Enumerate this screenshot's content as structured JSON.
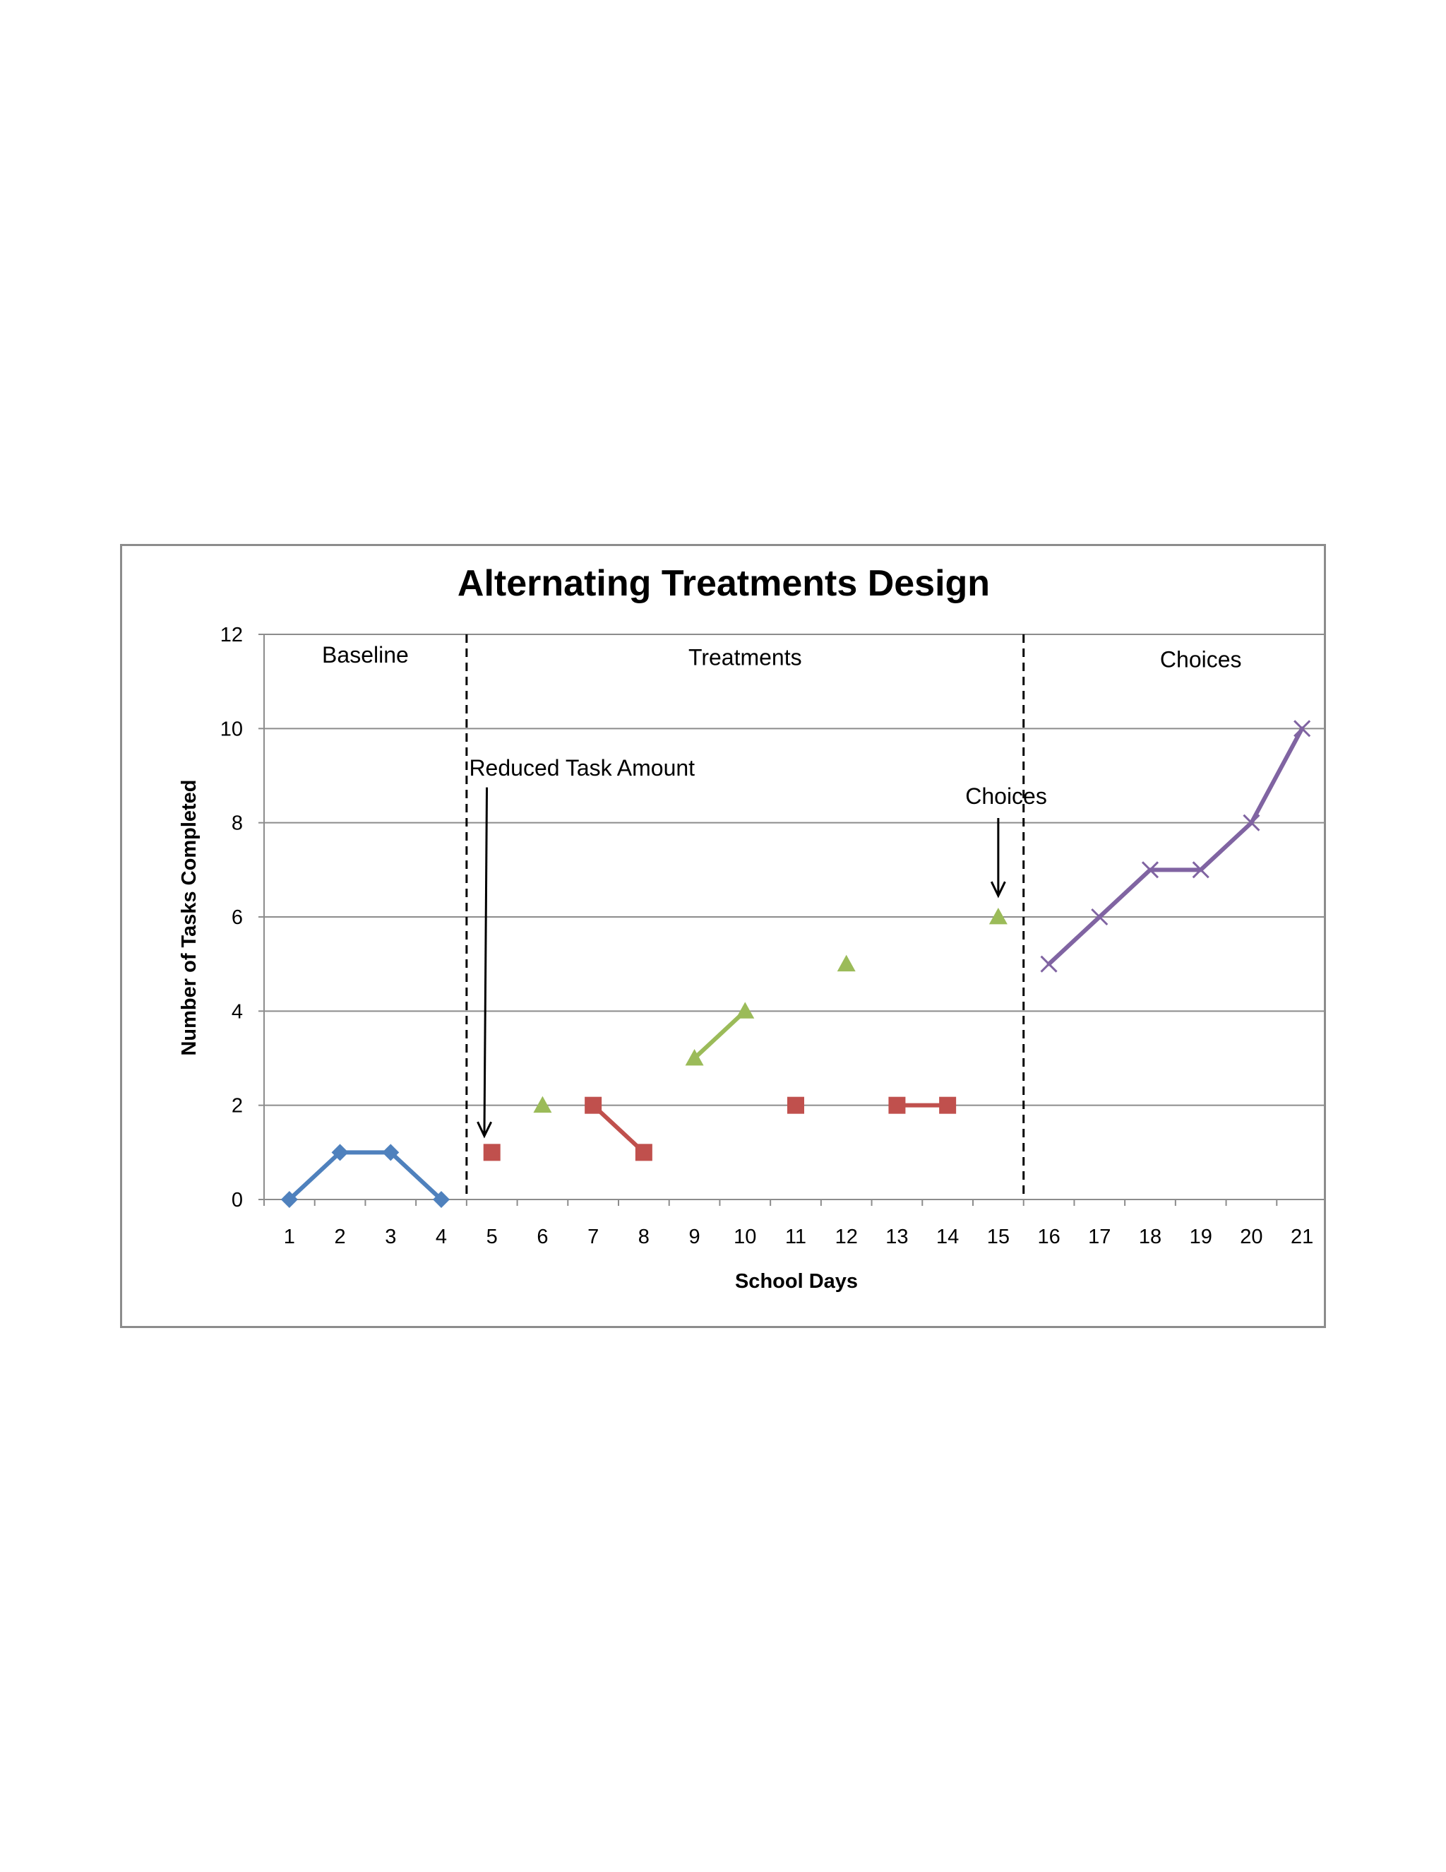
{
  "chart_data": {
    "type": "line",
    "title": "Alternating Treatments Design",
    "xlabel": "School Days",
    "ylabel": "Number of Tasks Completed",
    "x": [
      1,
      2,
      3,
      4,
      5,
      6,
      7,
      8,
      9,
      10,
      11,
      12,
      13,
      14,
      15,
      16,
      17,
      18,
      19,
      20,
      21
    ],
    "xticks": [
      "1",
      "2",
      "3",
      "4",
      "5",
      "6",
      "7",
      "8",
      "9",
      "10",
      "11",
      "12",
      "13",
      "14",
      "15",
      "16",
      "17",
      "18",
      "19",
      "20",
      "21"
    ],
    "ylim": [
      0,
      12
    ],
    "yticks": [
      "0",
      "2",
      "4",
      "6",
      "8",
      "10",
      "12"
    ],
    "grid": true,
    "legend": "none",
    "series": [
      {
        "color": "#4F81BD",
        "marker": "diamond",
        "points": [
          [
            1,
            0
          ],
          [
            2,
            1
          ],
          [
            3,
            1
          ],
          [
            4,
            0
          ]
        ],
        "segments": [
          [
            0,
            1
          ],
          [
            1,
            2
          ],
          [
            2,
            3
          ]
        ]
      },
      {
        "color": "#C0504D",
        "marker": "square",
        "points": [
          [
            5,
            1
          ],
          [
            7,
            2
          ],
          [
            8,
            1
          ],
          [
            11,
            2
          ],
          [
            13,
            2
          ],
          [
            14,
            2
          ]
        ],
        "segments": [
          [
            1,
            2
          ],
          [
            4,
            5
          ]
        ]
      },
      {
        "color": "#9BBB59",
        "marker": "triangle",
        "points": [
          [
            6,
            2
          ],
          [
            9,
            3
          ],
          [
            10,
            4
          ],
          [
            12,
            5
          ],
          [
            15,
            6
          ]
        ],
        "segments": [
          [
            1,
            2
          ]
        ]
      },
      {
        "color": "#8064A2",
        "marker": "x",
        "points": [
          [
            16,
            5
          ],
          [
            17,
            6
          ],
          [
            18,
            7
          ],
          [
            19,
            7
          ],
          [
            20,
            8
          ],
          [
            21,
            10
          ]
        ],
        "segments": [
          [
            0,
            1
          ],
          [
            1,
            2
          ],
          [
            2,
            3
          ],
          [
            3,
            4
          ],
          [
            4,
            5
          ]
        ]
      }
    ],
    "phase_lines": [
      4.5,
      15.5
    ],
    "phases": [
      {
        "label": "Baseline",
        "x": 2.5,
        "y": 11.4
      },
      {
        "label": "Treatments",
        "x": 10.0,
        "y": 11.35
      },
      {
        "label": "Choices",
        "x": 19.0,
        "y": 11.3
      }
    ],
    "annotations": [
      {
        "text": "Reduced Task Amount",
        "text_x": 4.55,
        "text_y": 9.0,
        "arrow_from": [
          4.9,
          8.75
        ],
        "arrow_to": [
          4.85,
          1.35
        ]
      },
      {
        "text": "Choices",
        "text_x": 14.35,
        "text_y": 8.4,
        "arrow_from": [
          15.0,
          8.1
        ],
        "arrow_to": [
          15.0,
          6.45
        ]
      }
    ]
  }
}
